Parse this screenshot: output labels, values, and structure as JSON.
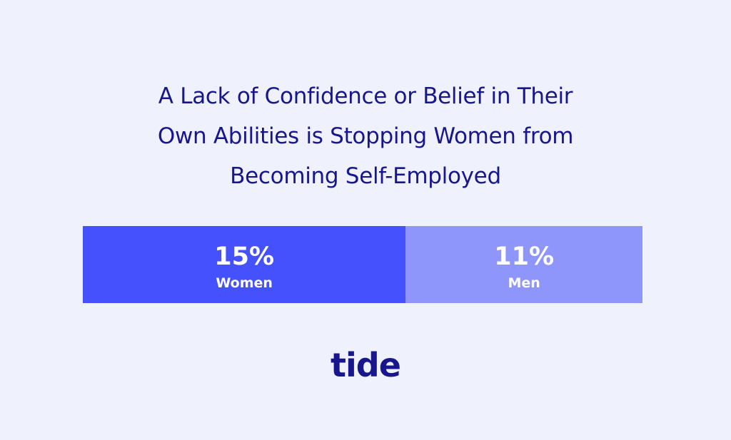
{
  "chart_data": {
    "type": "bar",
    "orientation": "horizontal-stacked",
    "title_lines": [
      "A Lack of Confidence or Belief in Their",
      "Own Abilities is Stopping Women from",
      "Becoming Self-Employed"
    ],
    "categories": [
      "Women",
      "Men"
    ],
    "values": [
      15,
      11
    ],
    "value_labels": [
      "15%",
      "11%"
    ],
    "colors": [
      "#4451fd",
      "#8e96fc"
    ],
    "text_color": "#ffffff",
    "legend": "none",
    "grid": false
  },
  "brand": {
    "logo_text": "tide",
    "color": "#18168c"
  },
  "background": "#eff2fc"
}
